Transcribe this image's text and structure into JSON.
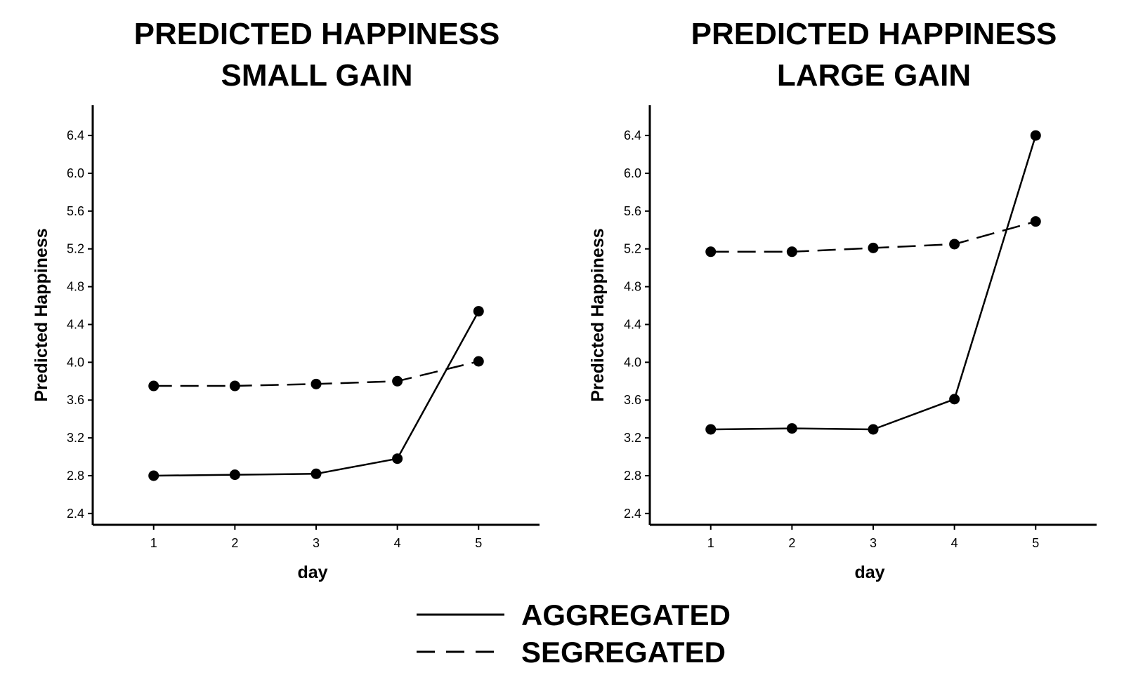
{
  "chart_data": [
    {
      "type": "line",
      "title": [
        "PREDICTED HAPPINESS",
        "SMALL GAIN"
      ],
      "xlabel": "day",
      "ylabel": "Predicted Happiness",
      "x": [
        1,
        2,
        3,
        4,
        5
      ],
      "x_ticks": [
        "1",
        "2",
        "3",
        "4",
        "5"
      ],
      "y_ticks": [
        "2.4",
        "2.8",
        "3.2",
        "3.6",
        "4.0",
        "4.4",
        "4.8",
        "5.2",
        "5.6",
        "6.0",
        "6.4"
      ],
      "xlim": [
        0.25,
        5.75
      ],
      "ylim": [
        2.28,
        6.72
      ],
      "grid": false,
      "series": [
        {
          "name": "AGGREGATED",
          "style": "solid",
          "values": [
            2.8,
            2.81,
            2.82,
            2.98,
            4.54
          ]
        },
        {
          "name": "SEGREGATED",
          "style": "dashed",
          "values": [
            3.75,
            3.75,
            3.77,
            3.8,
            4.01
          ]
        }
      ]
    },
    {
      "type": "line",
      "title": [
        "PREDICTED HAPPINESS",
        "LARGE GAIN"
      ],
      "xlabel": "day",
      "ylabel": "Predicted Happiness",
      "x": [
        1,
        2,
        3,
        4,
        5
      ],
      "x_ticks": [
        "1",
        "2",
        "3",
        "4",
        "5"
      ],
      "y_ticks": [
        "2.4",
        "2.8",
        "3.2",
        "3.6",
        "4.0",
        "4.4",
        "4.8",
        "5.2",
        "5.6",
        "6.0",
        "6.4"
      ],
      "xlim": [
        0.25,
        5.75
      ],
      "ylim": [
        2.28,
        6.72
      ],
      "grid": false,
      "series": [
        {
          "name": "AGGREGATED",
          "style": "solid",
          "values": [
            3.29,
            3.3,
            3.29,
            3.61,
            6.4
          ]
        },
        {
          "name": "SEGREGATED",
          "style": "dashed",
          "values": [
            5.17,
            5.17,
            5.21,
            5.25,
            5.49
          ]
        }
      ]
    }
  ],
  "legend": {
    "placement": "bottom-center",
    "items": [
      {
        "label": "AGGREGATED",
        "style": "solid"
      },
      {
        "label": "SEGREGATED",
        "style": "dashed"
      }
    ]
  },
  "colors": {
    "ink": "#000000",
    "background": "#ffffff"
  }
}
